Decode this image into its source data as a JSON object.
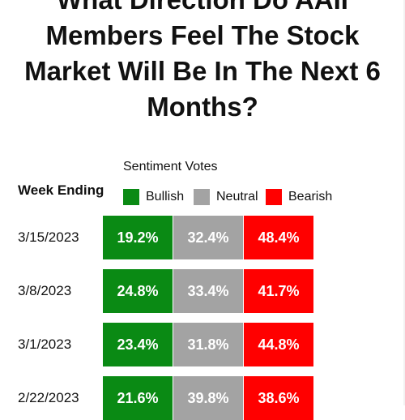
{
  "colors": {
    "bullish": "#0a8a14",
    "neutral": "#a3a3a3",
    "bearish": "#ff0000",
    "text": "#111111"
  },
  "chart_data": {
    "type": "table",
    "title_lines": [
      "What Direction Do AAII",
      "Members Feel The Stock",
      "Market Will Be In The Next 6",
      "Months?"
    ],
    "subheading": "Sentiment Votes",
    "row_header": "Week Ending",
    "legend": [
      "Bullish",
      "Neutral",
      "Bearish"
    ],
    "rows": [
      {
        "week": "3/15/2023",
        "bullish": "19.2%",
        "neutral": "32.4%",
        "bearish": "48.4%"
      },
      {
        "week": "3/8/2023",
        "bullish": "24.8%",
        "neutral": "33.4%",
        "bearish": "41.7%"
      },
      {
        "week": "3/1/2023",
        "bullish": "23.4%",
        "neutral": "31.8%",
        "bearish": "44.8%"
      },
      {
        "week": "2/22/2023",
        "bullish": "21.6%",
        "neutral": "39.8%",
        "bearish": "38.6%"
      }
    ]
  }
}
